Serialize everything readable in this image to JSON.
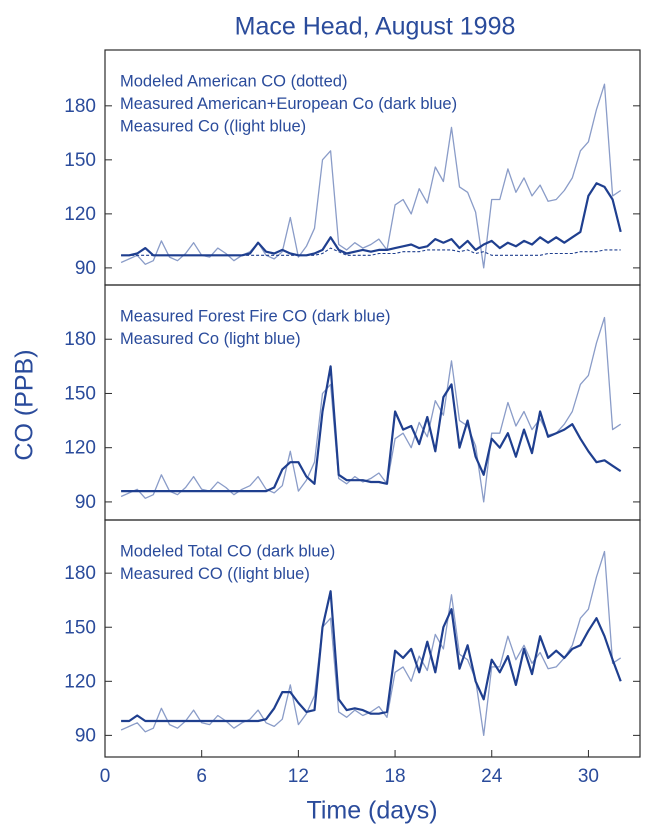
{
  "chart_data": [
    {
      "type": "line",
      "title": "Mace Head, August 1998",
      "legend": "top-left",
      "x": [
        1,
        1.5,
        2,
        2.5,
        3,
        3.5,
        4,
        4.5,
        5,
        5.5,
        6,
        6.5,
        7,
        7.5,
        8,
        8.5,
        9,
        9.5,
        10,
        10.5,
        11,
        11.5,
        12,
        12.5,
        13,
        13.5,
        14,
        14.5,
        15,
        15.5,
        16,
        16.5,
        17,
        17.5,
        18,
        18.5,
        19,
        19.5,
        20,
        20.5,
        21,
        21.5,
        22,
        22.5,
        23,
        23.5,
        24,
        24.5,
        25,
        25.5,
        26,
        26.5,
        27,
        27.5,
        28,
        28.5,
        29,
        29.5,
        30,
        30.5,
        31,
        31.5,
        32
      ],
      "xlim": [
        0,
        33.2
      ],
      "ylim": [
        80.5,
        211
      ],
      "yticks": [
        90,
        120,
        150,
        180
      ],
      "series": [
        {
          "name": "Modeled American CO (dotted)",
          "color": "#1f3f8f",
          "dash": true,
          "values": [
            97,
            97,
            97,
            97,
            97,
            97,
            97,
            97,
            97,
            97,
            97,
            97,
            97,
            97,
            97,
            97,
            97,
            97,
            97,
            97,
            97,
            97,
            97,
            97,
            97,
            98,
            101,
            99,
            97,
            97,
            97,
            97,
            98,
            98,
            98,
            99,
            99,
            99,
            100,
            100,
            100,
            100,
            99,
            100,
            98,
            99,
            97,
            97,
            97,
            97,
            97,
            97,
            97,
            98,
            98,
            98,
            98,
            99,
            99,
            99,
            100,
            100,
            100
          ]
        },
        {
          "name": "Measured American+European Co (dark blue)",
          "color": "#1f3f8f",
          "dash": false,
          "values": [
            97,
            97,
            98,
            101,
            97,
            97,
            97,
            97,
            97,
            97,
            97,
            97,
            97,
            97,
            97,
            97,
            98,
            104,
            99,
            98,
            100,
            98,
            97,
            97,
            98,
            100,
            107,
            100,
            98,
            99,
            100,
            99,
            100,
            100,
            101,
            102,
            103,
            101,
            102,
            106,
            104,
            106,
            101,
            105,
            100,
            103,
            105,
            101,
            104,
            102,
            105,
            103,
            107,
            104,
            107,
            104,
            107,
            110,
            130,
            137,
            135,
            128,
            110
          ]
        },
        {
          "name": "Measured Co ((light blue)",
          "color": "#8a9cc8",
          "dash": false,
          "values": [
            93,
            95,
            97,
            92,
            94,
            105,
            96,
            94,
            98,
            104,
            97,
            96,
            101,
            98,
            94,
            97,
            99,
            104,
            97,
            95,
            99,
            118,
            96,
            102,
            112,
            150,
            155,
            103,
            100,
            104,
            101,
            103,
            106,
            100,
            125,
            128,
            120,
            134,
            126,
            146,
            138,
            168,
            135,
            132,
            121,
            90,
            128,
            128,
            145,
            132,
            140,
            130,
            136,
            127,
            128,
            133,
            140,
            155,
            160,
            178,
            192,
            130,
            133
          ]
        }
      ]
    },
    {
      "type": "line",
      "y_label": "CO (PPB)",
      "legend": "top-left",
      "x": [
        1,
        1.5,
        2,
        2.5,
        3,
        3.5,
        4,
        4.5,
        5,
        5.5,
        6,
        6.5,
        7,
        7.5,
        8,
        8.5,
        9,
        9.5,
        10,
        10.5,
        11,
        11.5,
        12,
        12.5,
        13,
        13.5,
        14,
        14.5,
        15,
        15.5,
        16,
        16.5,
        17,
        17.5,
        18,
        18.5,
        19,
        19.5,
        20,
        20.5,
        21,
        21.5,
        22,
        22.5,
        23,
        23.5,
        24,
        24.5,
        25,
        25.5,
        26,
        26.5,
        27,
        27.5,
        28,
        28.5,
        29,
        29.5,
        30,
        30.5,
        31,
        31.5,
        32
      ],
      "xlim": [
        0,
        33.2
      ],
      "ylim": [
        80,
        210
      ],
      "yticks": [
        90,
        120,
        150,
        180
      ],
      "series": [
        {
          "name": "Measured Forest Fire CO (dark blue)",
          "color": "#1f3f8f",
          "dash": false,
          "values": [
            96,
            96,
            96,
            96,
            96,
            96,
            96,
            96,
            96,
            96,
            96,
            96,
            96,
            96,
            96,
            96,
            96,
            96,
            96,
            98,
            108,
            112,
            112,
            104,
            100,
            140,
            165,
            105,
            102,
            102,
            102,
            101,
            101,
            100,
            140,
            130,
            132,
            122,
            137,
            118,
            148,
            155,
            120,
            135,
            115,
            105,
            125,
            120,
            128,
            115,
            130,
            117,
            140,
            126,
            128,
            130,
            133,
            125,
            118,
            112,
            113,
            110,
            107
          ]
        },
        {
          "name": "Measured Co (light blue)",
          "color": "#8a9cc8",
          "dash": false,
          "values": [
            93,
            95,
            97,
            92,
            94,
            105,
            96,
            94,
            98,
            104,
            97,
            96,
            101,
            98,
            94,
            97,
            99,
            104,
            97,
            95,
            99,
            118,
            96,
            102,
            112,
            150,
            155,
            103,
            100,
            104,
            101,
            103,
            106,
            100,
            125,
            128,
            120,
            134,
            126,
            146,
            138,
            168,
            135,
            132,
            121,
            90,
            128,
            128,
            145,
            132,
            140,
            130,
            136,
            127,
            128,
            133,
            140,
            155,
            160,
            178,
            192,
            130,
            133
          ]
        }
      ]
    },
    {
      "type": "line",
      "x_label": "Time (days)",
      "legend": "top-left",
      "x": [
        1,
        1.5,
        2,
        2.5,
        3,
        3.5,
        4,
        4.5,
        5,
        5.5,
        6,
        6.5,
        7,
        7.5,
        8,
        8.5,
        9,
        9.5,
        10,
        10.5,
        11,
        11.5,
        12,
        12.5,
        13,
        13.5,
        14,
        14.5,
        15,
        15.5,
        16,
        16.5,
        17,
        17.5,
        18,
        18.5,
        19,
        19.5,
        20,
        20.5,
        21,
        21.5,
        22,
        22.5,
        23,
        23.5,
        24,
        24.5,
        25,
        25.5,
        26,
        26.5,
        27,
        27.5,
        28,
        28.5,
        29,
        29.5,
        30,
        30.5,
        31,
        31.5,
        32
      ],
      "xlim": [
        0,
        33.2
      ],
      "xticks": [
        0,
        6,
        12,
        18,
        24,
        30
      ],
      "ylim": [
        78,
        209.5
      ],
      "yticks": [
        90,
        120,
        150,
        180
      ],
      "series": [
        {
          "name": "Modeled Total CO (dark blue)",
          "color": "#1f3f8f",
          "dash": false,
          "values": [
            98,
            98,
            101,
            98,
            98,
            98,
            98,
            98,
            98,
            98,
            98,
            98,
            98,
            98,
            98,
            98,
            98,
            98,
            99,
            105,
            114,
            114,
            108,
            103,
            104,
            150,
            170,
            110,
            104,
            105,
            104,
            102,
            102,
            103,
            137,
            133,
            138,
            125,
            142,
            125,
            150,
            160,
            127,
            140,
            120,
            110,
            132,
            125,
            134,
            118,
            138,
            124,
            145,
            133,
            137,
            133,
            138,
            140,
            148,
            155,
            145,
            132,
            120
          ]
        },
        {
          "name": "Measured CO ((light blue)",
          "color": "#8a9cc8",
          "dash": false,
          "values": [
            93,
            95,
            97,
            92,
            94,
            105,
            96,
            94,
            98,
            104,
            97,
            96,
            101,
            98,
            94,
            97,
            99,
            104,
            97,
            95,
            99,
            118,
            96,
            102,
            112,
            150,
            155,
            103,
            100,
            104,
            101,
            103,
            106,
            100,
            125,
            128,
            120,
            134,
            126,
            146,
            138,
            168,
            135,
            132,
            121,
            90,
            128,
            128,
            145,
            132,
            140,
            130,
            136,
            127,
            128,
            133,
            140,
            155,
            160,
            178,
            192,
            130,
            133
          ]
        }
      ]
    }
  ]
}
